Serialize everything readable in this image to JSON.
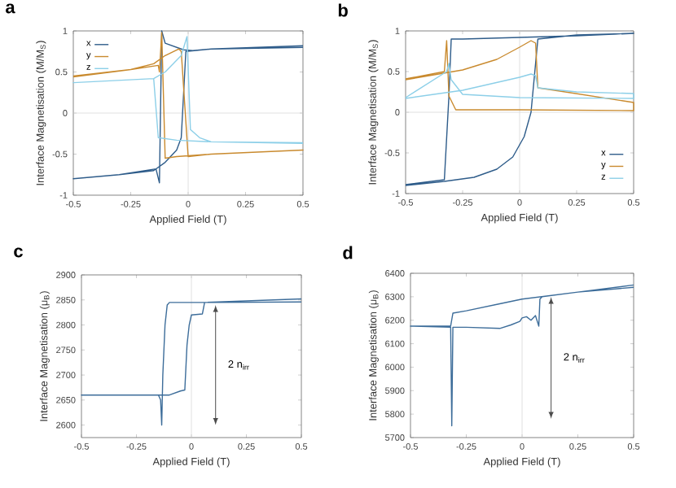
{
  "chart_data": [
    {
      "type": "line",
      "title": "a",
      "xlabel": "Applied Field (T)",
      "ylabel": "Interface Magnetisation (M/M$_{S}$)",
      "xlim": [
        -0.5,
        0.5
      ],
      "ylim": [
        -1,
        1
      ],
      "xticks": [
        -0.5,
        -0.25,
        0,
        0.25,
        0.5
      ],
      "yticks": [
        -1,
        -0.5,
        0,
        0.5,
        1
      ],
      "legend": "top left",
      "ref_lines": [
        {
          "axis": "x",
          "value": 0,
          "color": "#d8d8d8"
        },
        {
          "axis": "y",
          "value": 0,
          "color": "#d8d8d8"
        }
      ],
      "series": [
        {
          "name": "x",
          "color": "#2e5c8a",
          "x": [
            0.5,
            0.1,
            0.02,
            -0.02,
            -0.1,
            -0.115,
            -0.125,
            -0.14,
            -0.3,
            -0.5,
            -0.5,
            -0.3,
            -0.15,
            -0.1,
            -0.05,
            -0.03,
            -0.01,
            0.1,
            0.5
          ],
          "values": [
            0.82,
            0.78,
            0.76,
            0.77,
            0.85,
            1.0,
            -0.85,
            -0.68,
            -0.75,
            -0.8,
            -0.8,
            -0.75,
            -0.7,
            -0.6,
            -0.45,
            -0.3,
            0.75,
            0.78,
            0.8
          ]
        },
        {
          "name": "y",
          "color": "#c98a2e",
          "x": [
            -0.5,
            -0.25,
            -0.15,
            -0.1,
            -0.04,
            -0.03,
            0,
            0.1,
            0.5,
            0.5,
            0.1,
            -0.05,
            -0.1,
            -0.115,
            -0.125,
            -0.13,
            -0.25,
            -0.5
          ],
          "values": [
            0.45,
            0.53,
            0.6,
            0.7,
            0.78,
            0.75,
            -0.53,
            -0.5,
            -0.45,
            -0.45,
            -0.5,
            -0.53,
            -0.55,
            0.98,
            0.5,
            0.58,
            0.53,
            0.44
          ]
        },
        {
          "name": "z",
          "color": "#8ccfe8",
          "x": [
            0.5,
            0.1,
            0.05,
            0.01,
            -0.005,
            -0.03,
            -0.1,
            -0.15,
            -0.5,
            -0.5,
            -0.15,
            -0.13,
            -0.05,
            0.1,
            0.5
          ],
          "values": [
            -0.37,
            -0.35,
            -0.3,
            -0.2,
            0.93,
            0.7,
            0.5,
            0.42,
            0.37,
            0.37,
            0.42,
            -0.3,
            -0.33,
            -0.35,
            -0.36
          ]
        }
      ]
    },
    {
      "type": "line",
      "title": "b",
      "xlabel": "Applied Field (T)",
      "ylabel": "Interface Magnetisation (M/M$_{S}$)",
      "xlim": [
        -0.5,
        0.5
      ],
      "ylim": [
        -1,
        1
      ],
      "xticks": [
        -0.5,
        -0.25,
        0,
        0.25,
        0.5
      ],
      "yticks": [
        -1,
        -0.5,
        0,
        0.5,
        1
      ],
      "legend": "bottom right",
      "ref_lines": [
        {
          "axis": "x",
          "value": 0,
          "color": "#d8d8d8"
        },
        {
          "axis": "y",
          "value": 0,
          "color": "#d8d8d8"
        }
      ],
      "series": [
        {
          "name": "x",
          "color": "#2e5c8a",
          "x": [
            -0.5,
            -0.33,
            -0.2,
            -0.1,
            -0.03,
            0.02,
            0.05,
            0.08,
            0.25,
            0.5,
            0.5,
            0.25,
            0,
            -0.25,
            -0.3,
            -0.31,
            -0.33,
            -0.5
          ],
          "values": [
            -0.9,
            -0.85,
            -0.8,
            -0.7,
            -0.55,
            -0.3,
            0,
            0.9,
            0.95,
            0.97,
            0.97,
            0.94,
            0.92,
            0.9,
            0.9,
            0.2,
            -0.83,
            -0.89
          ]
        },
        {
          "name": "y",
          "color": "#c98a2e",
          "x": [
            -0.5,
            -0.25,
            -0.1,
            0,
            0.05,
            0.07,
            0.08,
            0.2,
            0.5,
            0.5,
            0,
            -0.28,
            -0.31,
            -0.32,
            -0.33,
            -0.5
          ],
          "values": [
            0.4,
            0.52,
            0.65,
            0.8,
            0.88,
            0.85,
            0.3,
            0.25,
            0.12,
            0.02,
            0.03,
            0.03,
            0.2,
            0.88,
            0.5,
            0.41
          ]
        },
        {
          "name": "z",
          "color": "#8ccfe8",
          "x": [
            -0.5,
            -0.25,
            0,
            0.05,
            0.07,
            0.08,
            0.25,
            0.5,
            0.5,
            0,
            -0.25,
            -0.3,
            -0.31,
            -0.32,
            -0.5
          ],
          "values": [
            0.17,
            0.27,
            0.43,
            0.47,
            0.45,
            0.3,
            0.25,
            0.23,
            0.17,
            0.18,
            0.22,
            0.4,
            0.6,
            0.5,
            0.18
          ]
        }
      ]
    },
    {
      "type": "line",
      "title": "c",
      "xlabel": "Applied Field (T)",
      "ylabel": "Interface Magnetisation (μ$_{B}$)",
      "xlim": [
        -0.5,
        0.5
      ],
      "ylim": [
        2575,
        2900
      ],
      "xticks": [
        -0.5,
        -0.25,
        0,
        0.25,
        0.5
      ],
      "yticks": [
        2600,
        2650,
        2700,
        2750,
        2800,
        2850,
        2900
      ],
      "ref_lines": [
        {
          "axis": "x",
          "value": 0,
          "color": "#d8d8d8"
        }
      ],
      "annotations": [
        "2 n$_{irr}$"
      ],
      "series": [
        {
          "color": "#3d6d9a",
          "x": [
            0.5,
            0.1,
            -0.1,
            -0.11,
            -0.12,
            -0.13,
            -0.135,
            -0.14,
            -0.15,
            -0.5,
            -0.5,
            -0.1,
            -0.05,
            -0.03,
            -0.02,
            -0.01,
            0,
            0.05,
            0.06,
            0.5
          ],
          "values": [
            2846,
            2845,
            2845,
            2840,
            2800,
            2700,
            2600,
            2650,
            2660,
            2660,
            2660,
            2660,
            2668,
            2670,
            2760,
            2800,
            2820,
            2822,
            2845,
            2852
          ]
        }
      ]
    },
    {
      "type": "line",
      "title": "d",
      "xlabel": "Applied Field (T)",
      "ylabel": "Interface Magnetisation (μ$_{B}$)",
      "xlim": [
        -0.5,
        0.5
      ],
      "ylim": [
        5700,
        6400
      ],
      "xticks": [
        -0.5,
        -0.25,
        0,
        0.25,
        0.5
      ],
      "yticks": [
        5700,
        5800,
        5900,
        6000,
        6100,
        6200,
        6300,
        6400
      ],
      "ref_lines": [
        {
          "axis": "x",
          "value": 0,
          "color": "#d8d8d8"
        }
      ],
      "annotations": [
        "2 n$_{irr}$"
      ],
      "series": [
        {
          "color": "#3d6d9a",
          "x": [
            0.5,
            0.25,
            0.09,
            0.08,
            0.075,
            0.06,
            0.04,
            0.02,
            0,
            -0.01,
            -0.05,
            -0.1,
            -0.25,
            -0.31,
            -0.315,
            -0.32,
            -0.5,
            -0.5,
            -0.32,
            -0.31,
            -0.25,
            -0.1,
            0,
            0.25,
            0.5
          ],
          "values": [
            6340,
            6320,
            6300,
            6290,
            6175,
            6220,
            6200,
            6215,
            6210,
            6195,
            6180,
            6165,
            6170,
            6170,
            5750,
            6170,
            6175,
            6175,
            6175,
            6230,
            6240,
            6270,
            6290,
            6320,
            6350
          ]
        }
      ]
    }
  ]
}
